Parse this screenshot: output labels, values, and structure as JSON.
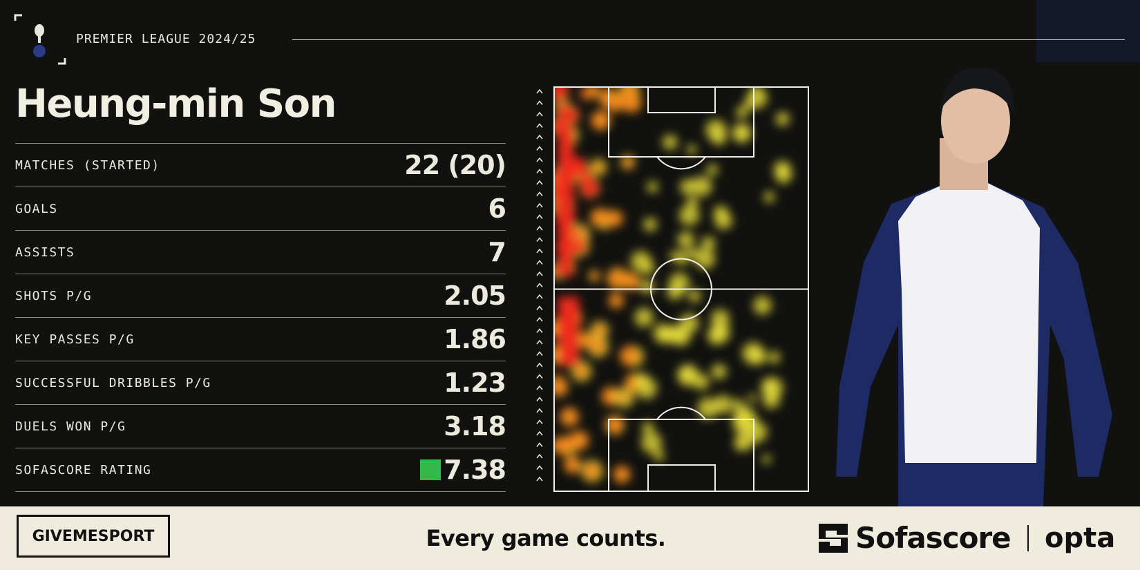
{
  "header": {
    "league": "PREMIER LEAGUE 2024/25",
    "player": "Heung-min Son"
  },
  "stats": [
    {
      "label": "MATCHES (STARTED)",
      "value": "22 (20)"
    },
    {
      "label": "GOALS",
      "value": 6
    },
    {
      "label": "ASSISTS",
      "value": 7
    },
    {
      "label": "SHOTS P/G",
      "value": 2.05
    },
    {
      "label": "KEY PASSES P/G",
      "value": 1.86
    },
    {
      "label": "SUCCESSFUL DRIBBLES P/G",
      "value": 1.23
    },
    {
      "label": "DUELS WON P/G",
      "value": 3.18
    },
    {
      "label": "SOFASCORE RATING",
      "value": 7.38
    }
  ],
  "footer": {
    "brand": "GIVEMESPORT",
    "tagline": "Every game counts.",
    "partner": "Sofascore",
    "partner2": "opta"
  }
}
